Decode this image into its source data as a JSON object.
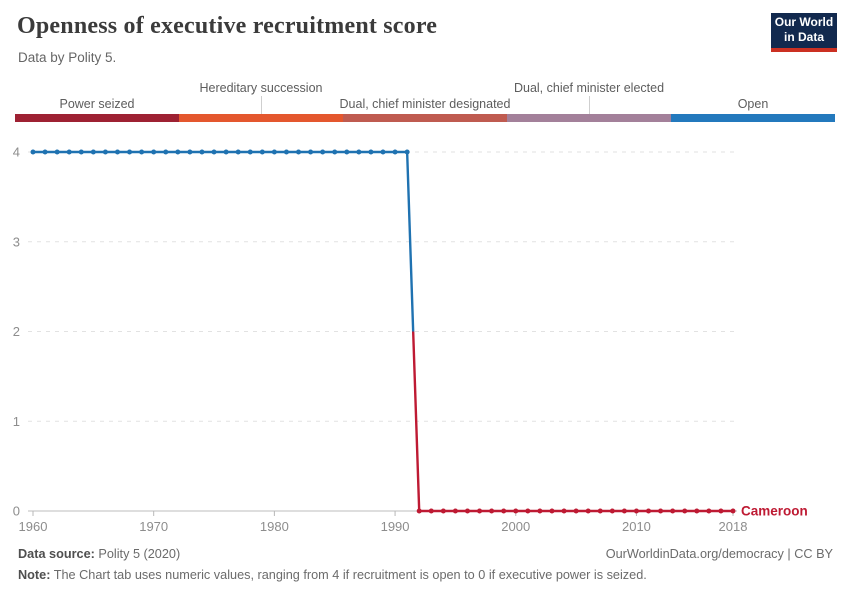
{
  "header": {
    "title": "Openness of executive recruitment score",
    "subtitle": "Data by Polity 5.",
    "logo": {
      "line1": "Our World",
      "line2": "in Data",
      "bg": "#12294e",
      "accent": "#cb3022"
    }
  },
  "legend": {
    "segments": [
      {
        "label": "Power seized",
        "color": "#9e2133",
        "row": "lower"
      },
      {
        "label": "Hereditary succession",
        "color": "#e4572e",
        "row": "upper"
      },
      {
        "label": "Dual, chief minister designated",
        "color": "#bf5b50",
        "row": "lower"
      },
      {
        "label": "Dual, chief minister elected",
        "color": "#a3809a",
        "row": "upper"
      },
      {
        "label": "Open",
        "color": "#2379bd",
        "row": "lower"
      }
    ]
  },
  "chart_data": {
    "type": "line",
    "title": "Openness of executive recruitment score",
    "entity_label": "Cameroon",
    "xlabel": "",
    "ylabel": "",
    "ylim": [
      0,
      4
    ],
    "yticks": [
      0,
      1,
      2,
      3,
      4
    ],
    "xticks": [
      1960,
      1970,
      1980,
      1990,
      2000,
      2010,
      2018
    ],
    "grid": "dashed-horizontal",
    "x": [
      1960,
      1961,
      1962,
      1963,
      1964,
      1965,
      1966,
      1967,
      1968,
      1969,
      1970,
      1971,
      1972,
      1973,
      1974,
      1975,
      1976,
      1977,
      1978,
      1979,
      1980,
      1981,
      1982,
      1983,
      1984,
      1985,
      1986,
      1987,
      1988,
      1989,
      1990,
      1991,
      1992,
      1993,
      1994,
      1995,
      1996,
      1997,
      1998,
      1999,
      2000,
      2001,
      2002,
      2003,
      2004,
      2005,
      2006,
      2007,
      2008,
      2009,
      2010,
      2011,
      2012,
      2013,
      2014,
      2015,
      2016,
      2017,
      2018
    ],
    "values": [
      4,
      4,
      4,
      4,
      4,
      4,
      4,
      4,
      4,
      4,
      4,
      4,
      4,
      4,
      4,
      4,
      4,
      4,
      4,
      4,
      4,
      4,
      4,
      4,
      4,
      4,
      4,
      4,
      4,
      4,
      4,
      4,
      0,
      0,
      0,
      0,
      0,
      0,
      0,
      0,
      0,
      0,
      0,
      0,
      0,
      0,
      0,
      0,
      0,
      0,
      0,
      0,
      0,
      0,
      0,
      0,
      0,
      0,
      0
    ],
    "value_colors": {
      "4": "#1f72b1",
      "0": "#be1a33"
    },
    "axis_color": "#bdbdbd",
    "grid_color": "#e2e2e2"
  },
  "footer": {
    "source_label": "Data source:",
    "source_value": "Polity 5 (2020)",
    "link": "OurWorldinData.org/democracy | CC BY",
    "note_label": "Note:",
    "note_text": "The Chart tab uses numeric values, ranging from 4 if recruitment is open to 0 if executive power is seized."
  }
}
